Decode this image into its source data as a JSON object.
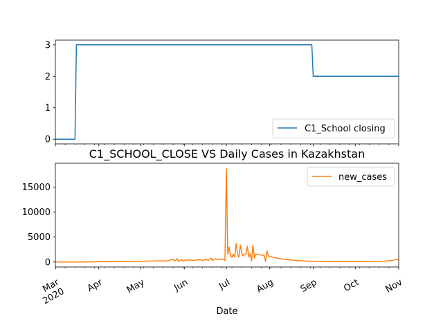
{
  "chart_data": [
    {
      "type": "line",
      "title": "",
      "xlabel": "",
      "ylabel": "",
      "ylim": [
        -0.15,
        3.15
      ],
      "yticks": [
        0,
        1,
        2,
        3
      ],
      "legend": "bottom-right",
      "grid": false,
      "series": [
        {
          "name": "C1_School closing",
          "color": "#1f77b4",
          "points": [
            [
              "2020-03-01",
              0
            ],
            [
              "2020-03-15",
              0
            ],
            [
              "2020-03-16",
              3
            ],
            [
              "2020-08-31",
              3
            ],
            [
              "2020-09-01",
              2
            ],
            [
              "2020-11-01",
              2
            ]
          ]
        }
      ]
    },
    {
      "type": "line",
      "title": "C1_SCHOOL_CLOSE VS Daily Cases in Kazakhstan",
      "xlabel": "Date",
      "ylabel": "",
      "ylim": [
        -1000,
        19800
      ],
      "yticks": [
        0,
        5000,
        10000,
        15000
      ],
      "legend": "top-right",
      "grid": false,
      "series": [
        {
          "name": "new_cases",
          "color": "#ff7f0e",
          "points": [
            [
              "2020-03-01",
              0
            ],
            [
              "2020-03-13",
              0
            ],
            [
              "2020-03-20",
              10
            ],
            [
              "2020-03-27",
              30
            ],
            [
              "2020-04-01",
              50
            ],
            [
              "2020-04-08",
              60
            ],
            [
              "2020-04-15",
              90
            ],
            [
              "2020-04-22",
              120
            ],
            [
              "2020-04-29",
              150
            ],
            [
              "2020-05-06",
              180
            ],
            [
              "2020-05-13",
              230
            ],
            [
              "2020-05-20",
              220
            ],
            [
              "2020-05-24",
              600
            ],
            [
              "2020-05-25",
              150
            ],
            [
              "2020-05-27",
              650
            ],
            [
              "2020-05-28",
              100
            ],
            [
              "2020-05-30",
              500
            ],
            [
              "2020-05-31",
              200
            ],
            [
              "2020-06-02",
              400
            ],
            [
              "2020-06-06",
              380
            ],
            [
              "2020-06-08",
              300
            ],
            [
              "2020-06-11",
              450
            ],
            [
              "2020-06-13",
              400
            ],
            [
              "2020-06-15",
              350
            ],
            [
              "2020-06-17",
              600
            ],
            [
              "2020-06-18",
              250
            ],
            [
              "2020-06-20",
              800
            ],
            [
              "2020-06-21",
              300
            ],
            [
              "2020-06-23",
              650
            ],
            [
              "2020-06-25",
              500
            ],
            [
              "2020-06-27",
              550
            ],
            [
              "2020-06-29",
              600
            ],
            [
              "2020-06-30",
              300
            ],
            [
              "2020-07-01",
              18700
            ],
            [
              "2020-07-02",
              1500
            ],
            [
              "2020-07-03",
              3000
            ],
            [
              "2020-07-04",
              1200
            ],
            [
              "2020-07-05",
              900
            ],
            [
              "2020-07-06",
              1600
            ],
            [
              "2020-07-07",
              1000
            ],
            [
              "2020-07-08",
              3700
            ],
            [
              "2020-07-09",
              1500
            ],
            [
              "2020-07-10",
              1000
            ],
            [
              "2020-07-11",
              3400
            ],
            [
              "2020-07-12",
              1700
            ],
            [
              "2020-07-13",
              1200
            ],
            [
              "2020-07-14",
              1600
            ],
            [
              "2020-07-15",
              1500
            ],
            [
              "2020-07-16",
              3200
            ],
            [
              "2020-07-17",
              1000
            ],
            [
              "2020-07-18",
              1700
            ],
            [
              "2020-07-19",
              200
            ],
            [
              "2020-07-20",
              3400
            ],
            [
              "2020-07-21",
              800
            ],
            [
              "2020-07-22",
              1600
            ],
            [
              "2020-07-24",
              1500
            ],
            [
              "2020-07-26",
              1400
            ],
            [
              "2020-07-28",
              1300
            ],
            [
              "2020-07-29",
              100
            ],
            [
              "2020-07-30",
              2200
            ],
            [
              "2020-07-31",
              1200
            ],
            [
              "2020-08-04",
              900
            ],
            [
              "2020-08-08",
              700
            ],
            [
              "2020-08-12",
              500
            ],
            [
              "2020-08-16",
              400
            ],
            [
              "2020-08-20",
              300
            ],
            [
              "2020-08-25",
              200
            ],
            [
              "2020-09-01",
              120
            ],
            [
              "2020-09-10",
              90
            ],
            [
              "2020-09-20",
              80
            ],
            [
              "2020-10-01",
              80
            ],
            [
              "2020-10-10",
              90
            ],
            [
              "2020-10-20",
              150
            ],
            [
              "2020-10-25",
              250
            ],
            [
              "2020-10-28",
              350
            ],
            [
              "2020-10-30",
              500
            ],
            [
              "2020-11-01",
              450
            ]
          ]
        }
      ]
    }
  ],
  "x_axis": {
    "range": [
      "2020-03-01",
      "2020-11-01"
    ],
    "ticks": [
      {
        "date": "2020-03-01",
        "label": "Mar",
        "sublabel": "2020"
      },
      {
        "date": "2020-04-01",
        "label": "Apr"
      },
      {
        "date": "2020-05-01",
        "label": "May"
      },
      {
        "date": "2020-06-01",
        "label": "Jun"
      },
      {
        "date": "2020-07-01",
        "label": "Jul"
      },
      {
        "date": "2020-08-01",
        "label": "Aug"
      },
      {
        "date": "2020-09-01",
        "label": "Sep"
      },
      {
        "date": "2020-10-01",
        "label": "Oct"
      },
      {
        "date": "2020-11-01",
        "label": "Nov"
      }
    ]
  }
}
